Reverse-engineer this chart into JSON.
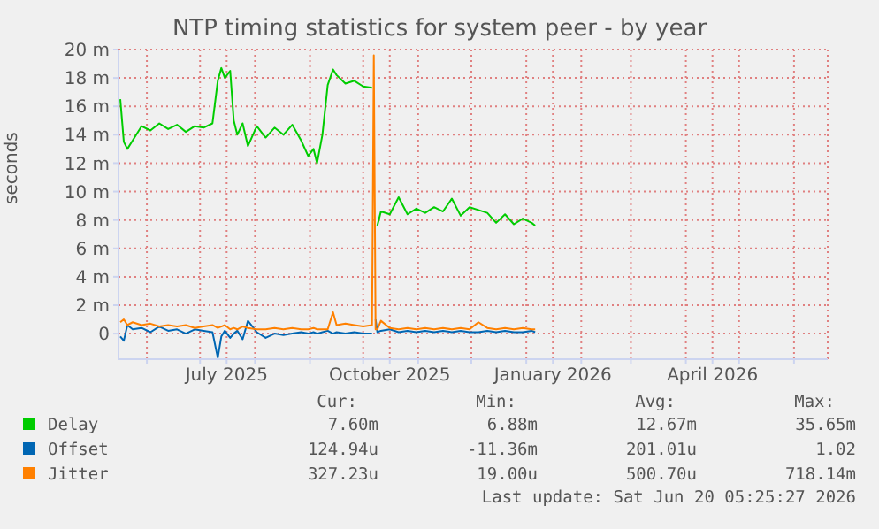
{
  "chart_data": {
    "type": "line",
    "title": "NTP timing statistics for system peer - by year",
    "ylabel": "seconds",
    "x": [
      "2025-05-17",
      "2025-05-19",
      "2025-05-21",
      "2025-05-24",
      "2025-05-29",
      "2025-06-03",
      "2025-06-08",
      "2025-06-13",
      "2025-06-18",
      "2025-06-23",
      "2025-06-28",
      "2025-07-03",
      "2025-07-08",
      "2025-07-11",
      "2025-07-13",
      "2025-07-15",
      "2025-07-18",
      "2025-07-20",
      "2025-07-22",
      "2025-07-25",
      "2025-07-28",
      "2025-08-02",
      "2025-08-07",
      "2025-08-12",
      "2025-08-17",
      "2025-08-22",
      "2025-08-27",
      "2025-08-31",
      "2025-09-03",
      "2025-09-05",
      "2025-09-08",
      "2025-09-11",
      "2025-09-14",
      "2025-09-16",
      "2025-09-21",
      "2025-09-26",
      "2025-10-01",
      "2025-10-06",
      "2025-10-07",
      "2025-10-08",
      "2025-10-09",
      "2025-10-11",
      "2025-10-16",
      "2025-10-21",
      "2025-10-26",
      "2025-10-31",
      "2025-11-05",
      "2025-11-10",
      "2025-11-15",
      "2025-11-20",
      "2025-11-25",
      "2025-11-30",
      "2025-12-05",
      "2025-12-10",
      "2025-12-15",
      "2025-12-20",
      "2025-12-25",
      "2025-12-30",
      "2026-01-04",
      "2026-01-06"
    ],
    "series": [
      {
        "name": "Delay",
        "color": "#00cc00",
        "values": [
          16.5,
          13.5,
          13.0,
          13.6,
          14.6,
          14.3,
          14.8,
          14.4,
          14.7,
          14.2,
          14.6,
          14.5,
          14.8,
          17.8,
          18.7,
          18.0,
          18.5,
          15.0,
          14.0,
          14.8,
          13.2,
          14.6,
          13.8,
          14.5,
          14.0,
          14.7,
          13.6,
          12.5,
          13.0,
          12.0,
          14.0,
          17.5,
          18.6,
          18.2,
          17.6,
          17.8,
          17.4,
          17.3,
          null,
          null,
          7.6,
          8.6,
          8.4,
          9.6,
          8.4,
          8.8,
          8.5,
          8.9,
          8.6,
          9.5,
          8.3,
          8.9,
          8.7,
          8.5,
          7.8,
          8.4,
          7.7,
          8.1,
          7.8,
          7.6
        ]
      },
      {
        "name": "Offset",
        "color": "#0066b3",
        "values": [
          -0.2,
          -0.5,
          0.6,
          0.3,
          0.4,
          0.1,
          0.5,
          0.2,
          0.3,
          0.0,
          0.3,
          0.2,
          0.1,
          -1.7,
          -0.2,
          0.2,
          -0.3,
          0.0,
          0.2,
          -0.4,
          0.9,
          0.1,
          -0.3,
          0.0,
          -0.1,
          0.0,
          0.1,
          0.0,
          0.1,
          0.0,
          0.1,
          0.2,
          0.0,
          0.1,
          0.0,
          0.1,
          0.0,
          0.0,
          null,
          1.0,
          0.1,
          0.2,
          0.3,
          0.1,
          0.2,
          0.1,
          0.2,
          0.1,
          0.2,
          0.1,
          0.2,
          0.1,
          0.1,
          0.2,
          0.1,
          0.2,
          0.1,
          0.1,
          0.2,
          0.1
        ]
      },
      {
        "name": "Jitter",
        "color": "#ff8000",
        "values": [
          0.8,
          1.0,
          0.6,
          0.8,
          0.6,
          0.7,
          0.5,
          0.6,
          0.5,
          0.6,
          0.4,
          0.5,
          0.6,
          0.4,
          0.5,
          0.6,
          0.3,
          0.4,
          0.3,
          0.5,
          0.4,
          0.3,
          0.3,
          0.4,
          0.3,
          0.4,
          0.3,
          0.3,
          0.4,
          0.3,
          0.3,
          0.3,
          1.5,
          0.6,
          0.7,
          0.6,
          0.5,
          0.6,
          19.6,
          0.3,
          0.3,
          0.9,
          0.4,
          0.3,
          0.4,
          0.3,
          0.4,
          0.3,
          0.4,
          0.3,
          0.4,
          0.3,
          0.8,
          0.4,
          0.3,
          0.4,
          0.3,
          0.4,
          0.3,
          0.3
        ]
      }
    ],
    "xlim": [
      "2025-05-16",
      "2026-06-20"
    ],
    "xticks": [
      {
        "value": "2025-06-01",
        "label": null
      },
      {
        "value": "2025-07-01",
        "label": null
      },
      {
        "value": "2025-07-16",
        "label": "July 2025"
      },
      {
        "value": "2025-08-01",
        "label": null
      },
      {
        "value": "2025-09-01",
        "label": null
      },
      {
        "value": "2025-10-01",
        "label": null
      },
      {
        "value": "2025-10-16",
        "label": "October 2025"
      },
      {
        "value": "2025-11-01",
        "label": null
      },
      {
        "value": "2025-12-01",
        "label": null
      },
      {
        "value": "2026-01-01",
        "label": null
      },
      {
        "value": "2026-01-16",
        "label": "January 2026"
      },
      {
        "value": "2026-02-01",
        "label": null
      },
      {
        "value": "2026-03-01",
        "label": null
      },
      {
        "value": "2026-04-01",
        "label": null
      },
      {
        "value": "2026-04-16",
        "label": "April 2026"
      },
      {
        "value": "2026-05-01",
        "label": null
      },
      {
        "value": "2026-06-01",
        "label": null
      }
    ],
    "ylim": [
      -1.8,
      20
    ],
    "yticks": [
      0,
      {
        "value": 2,
        "label": "2 m"
      },
      {
        "value": 4,
        "label": "4 m"
      },
      {
        "value": 6,
        "label": "6 m"
      },
      {
        "value": 8,
        "label": "8 m"
      },
      {
        "value": 10,
        "label": "10 m"
      },
      {
        "value": 12,
        "label": "12 m"
      },
      {
        "value": 14,
        "label": "14 m"
      },
      {
        "value": 16,
        "label": "16 m"
      },
      {
        "value": 18,
        "label": "18 m"
      },
      {
        "value": 20,
        "label": "20 m"
      }
    ],
    "grid": true,
    "legend": "bottom",
    "marker": "none",
    "line_style": "solid",
    "annotations": [
      "Cur:",
      "Min:",
      "Avg:",
      "Max:",
      "7.60m",
      "6.88m",
      "12.67m",
      "35.65m",
      "124.94u",
      "-11.36m",
      "201.01u",
      "1.02",
      "327.23u",
      "19.00u",
      "500.70u",
      "718.14m",
      "Last update: Sat Jun 20 05:25:27 2026"
    ]
  }
}
